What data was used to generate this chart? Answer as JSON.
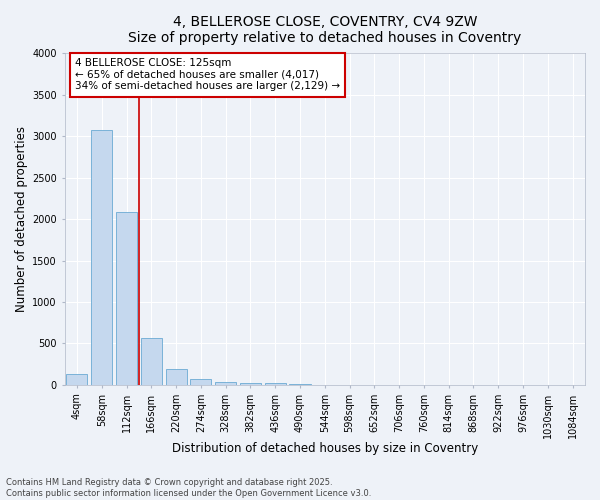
{
  "title_line1": "4, BELLEROSE CLOSE, COVENTRY, CV4 9ZW",
  "title_line2": "Size of property relative to detached houses in Coventry",
  "xlabel": "Distribution of detached houses by size in Coventry",
  "ylabel": "Number of detached properties",
  "bar_color": "#c5d8ee",
  "bar_edge_color": "#6aaad4",
  "background_color": "#eef2f8",
  "grid_color": "#ffffff",
  "bin_labels": [
    "4sqm",
    "58sqm",
    "112sqm",
    "166sqm",
    "220sqm",
    "274sqm",
    "328sqm",
    "382sqm",
    "436sqm",
    "490sqm",
    "544sqm",
    "598sqm",
    "652sqm",
    "706sqm",
    "760sqm",
    "814sqm",
    "868sqm",
    "922sqm",
    "976sqm",
    "1030sqm",
    "1084sqm"
  ],
  "bar_values": [
    130,
    3080,
    2090,
    570,
    195,
    70,
    40,
    25,
    20,
    8,
    3,
    2,
    1,
    1,
    0,
    0,
    0,
    0,
    0,
    0,
    0
  ],
  "ylim": [
    0,
    4000
  ],
  "yticks": [
    0,
    500,
    1000,
    1500,
    2000,
    2500,
    3000,
    3500,
    4000
  ],
  "red_line_x": 2.5,
  "annotation_text": "4 BELLEROSE CLOSE: 125sqm\n← 65% of detached houses are smaller (4,017)\n34% of semi-detached houses are larger (2,129) →",
  "annotation_box_color": "#ffffff",
  "annotation_border_color": "#cc0000",
  "red_line_color": "#cc0000",
  "footnote": "Contains HM Land Registry data © Crown copyright and database right 2025.\nContains public sector information licensed under the Open Government Licence v3.0.",
  "title_fontsize": 10,
  "axis_label_fontsize": 8.5,
  "tick_fontsize": 7,
  "annotation_fontsize": 7.5,
  "footnote_fontsize": 6
}
